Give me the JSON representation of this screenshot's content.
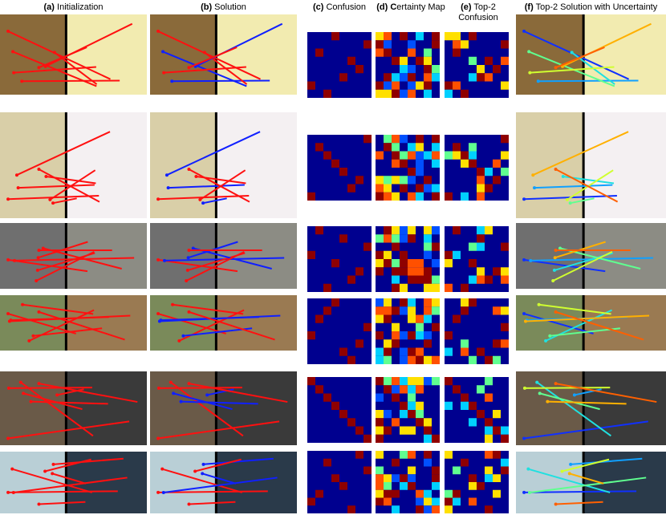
{
  "columns": [
    {
      "tag": "(a)",
      "text": "Initialization"
    },
    {
      "tag": "(b)",
      "text": "Solution"
    },
    {
      "tag": "(c)",
      "text": "Confusion"
    },
    {
      "tag": "(d)",
      "text": "Certainty Map"
    },
    {
      "tag": "(e)",
      "text": "Top-2 Confusion"
    },
    {
      "tag": "(f)",
      "text": "Top-2 Solution with Uncertainty"
    }
  ]
}
